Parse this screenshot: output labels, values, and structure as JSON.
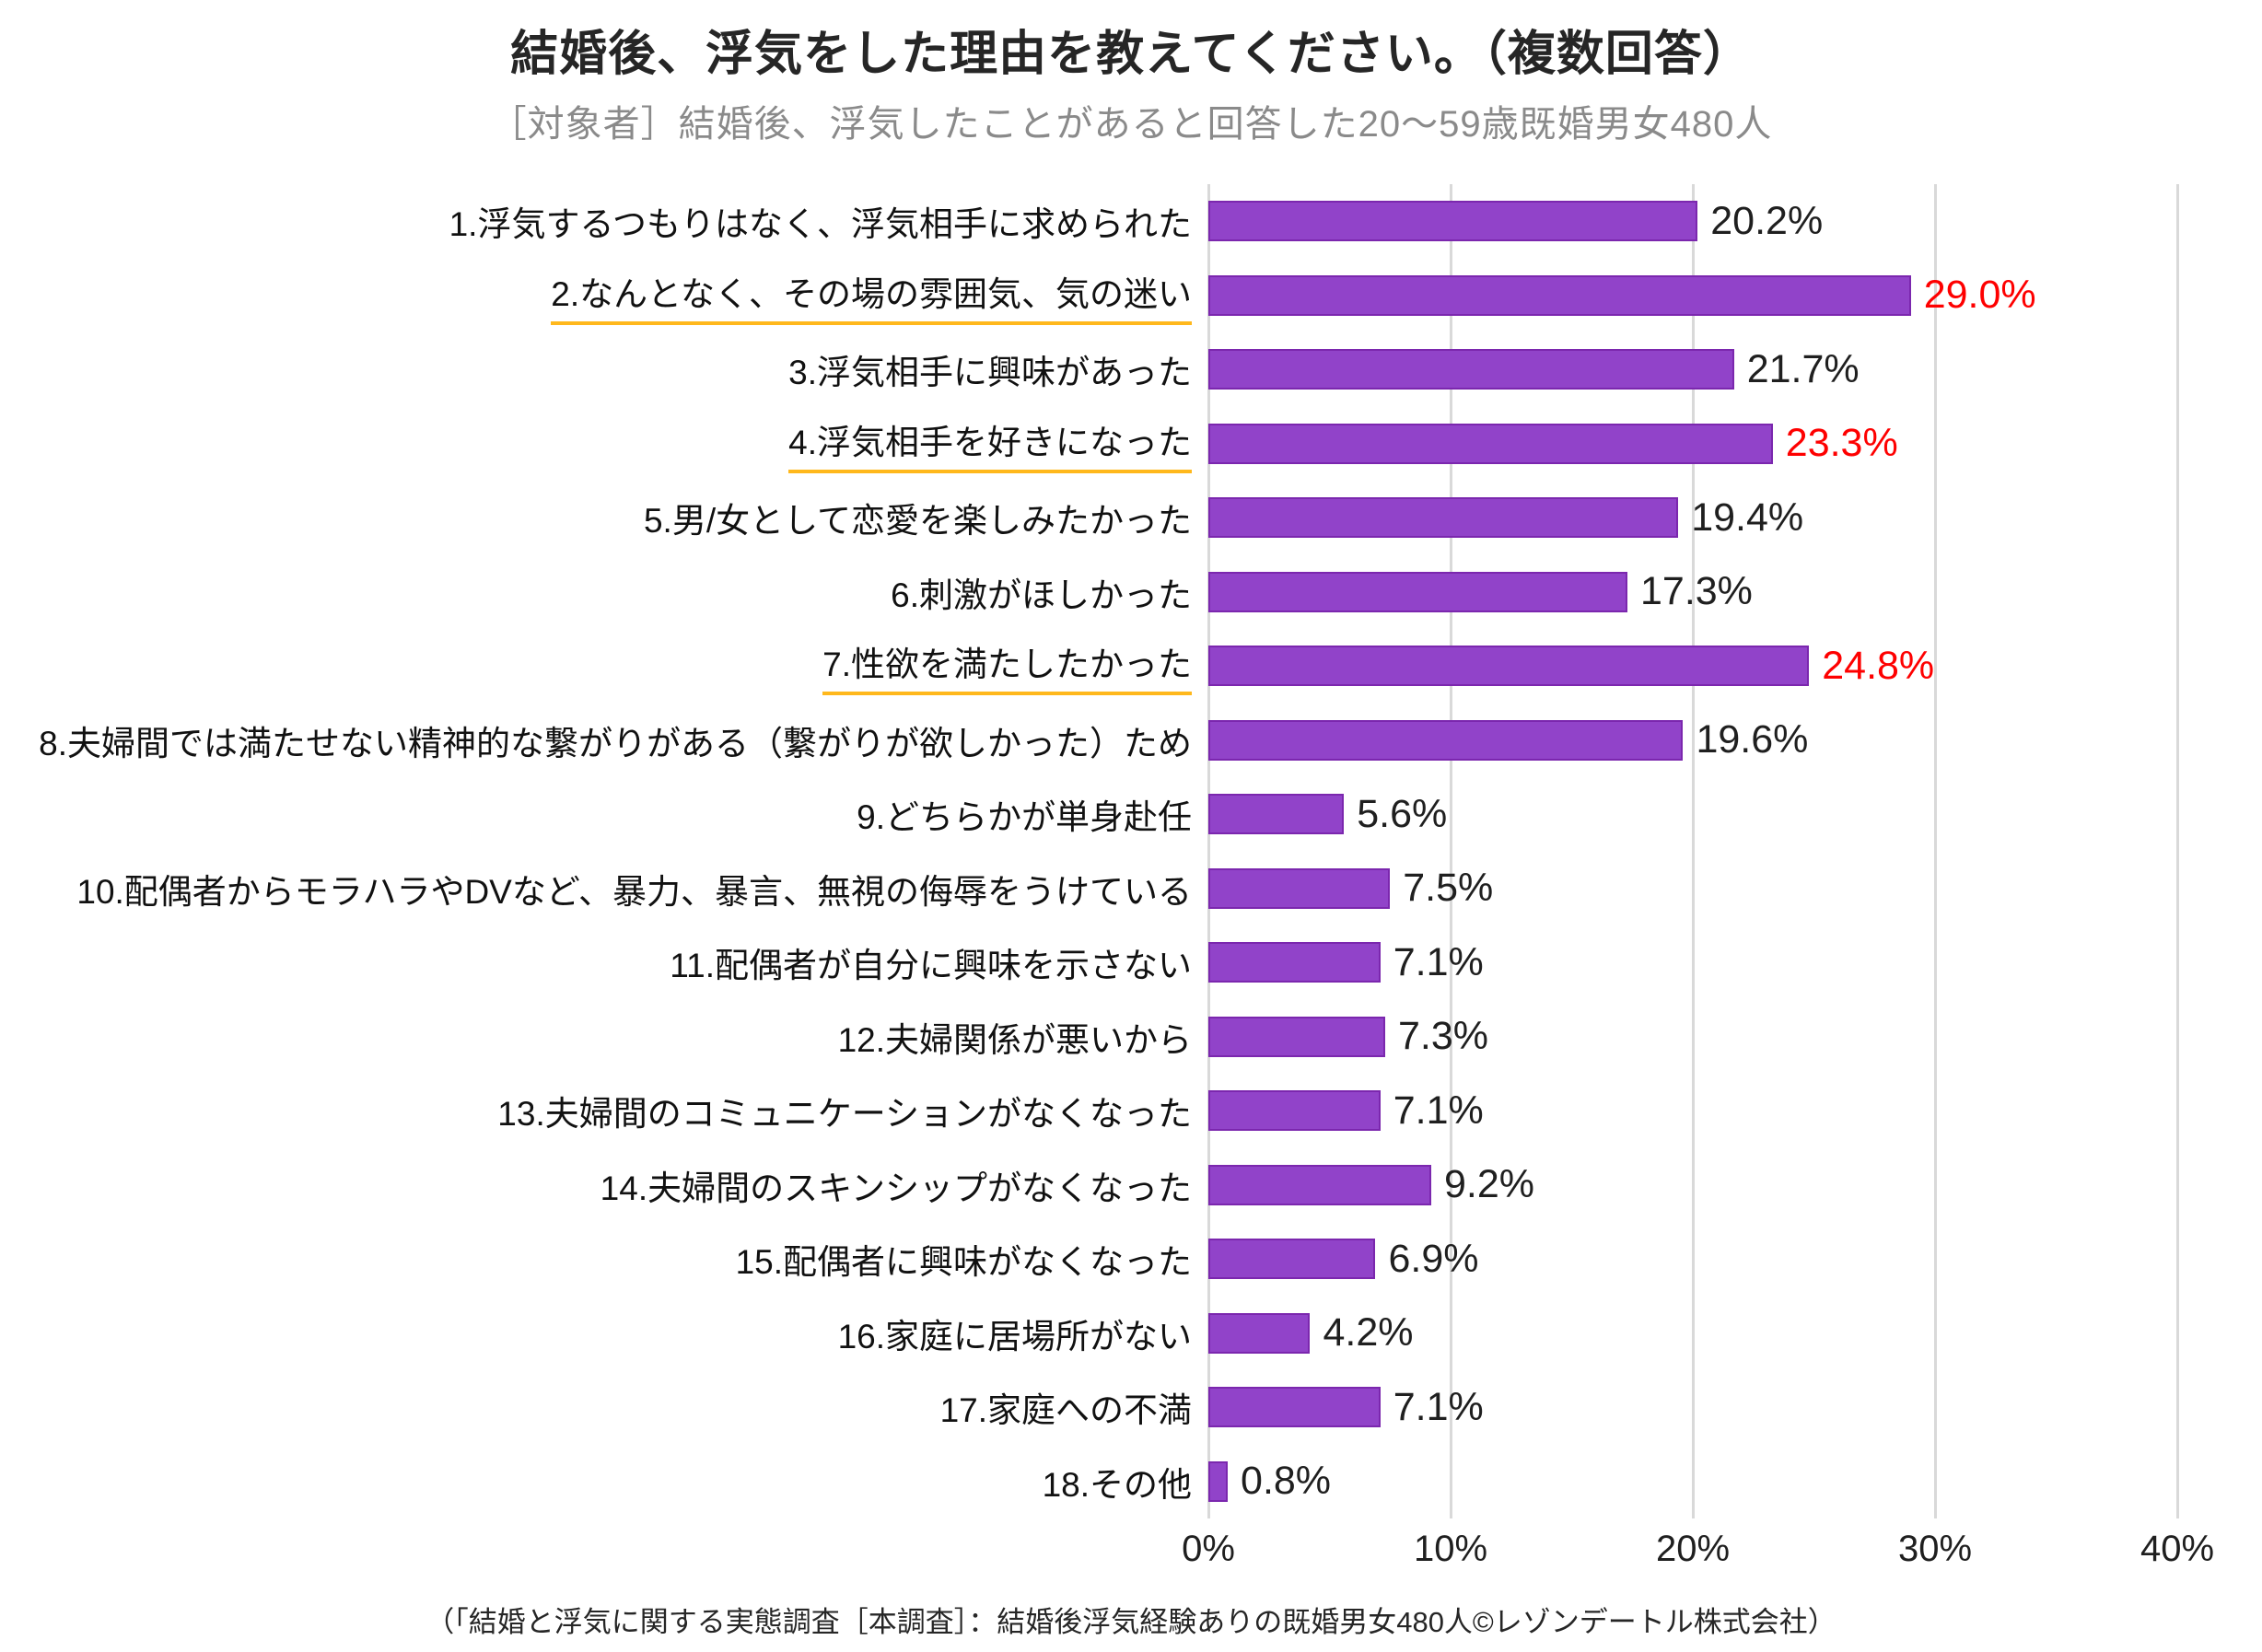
{
  "header": {
    "title": "結婚後、浮気をした理由を教えてください。（複数回答）",
    "subtitle": "［対象者］結婚後、浮気したことがあると回答した20〜59歳既婚男女480人"
  },
  "footer": {
    "source": "（「結婚と浮気に関する実態調査［本調査］：結婚後浮気経験ありの既婚男女480人©レゾンデートル株式会社）"
  },
  "colors": {
    "bar_fill": "#9143c9",
    "bar_border": "#7b27ae",
    "gridline": "#d9d9d9",
    "value_text": "#1f1f1f",
    "value_highlight": "#fe0000",
    "label_underline": "#ffb81c",
    "subtitle_gray": "#8a8a8a"
  },
  "chart_data": {
    "type": "bar",
    "orientation": "horizontal",
    "title": "結婚後、浮気をした理由を教えてください。（複数回答）",
    "subtitle": "［対象者］結婚後、浮気したことがあると回答した20〜59歳既婚男女480人",
    "unit": "%",
    "xlim": [
      0,
      40
    ],
    "grid": "vertical-only",
    "x_ticks": [
      {
        "label": "0%",
        "value": 0
      },
      {
        "label": "10%",
        "value": 10
      },
      {
        "label": "20%",
        "value": 20
      },
      {
        "label": "30%",
        "value": 30
      },
      {
        "label": "40%",
        "value": 40
      }
    ],
    "items": [
      {
        "label": "1.浮気するつもりはなく、浮気相手に求められた",
        "value": 20.2,
        "value_label": "20.2%",
        "highlight": false,
        "underline": false
      },
      {
        "label": "2.なんとなく、その場の雰囲気、気の迷い",
        "value": 29.0,
        "value_label": "29.0%",
        "highlight": true,
        "underline": true
      },
      {
        "label": "3.浮気相手に興味があった",
        "value": 21.7,
        "value_label": "21.7%",
        "highlight": false,
        "underline": false
      },
      {
        "label": "4.浮気相手を好きになった",
        "value": 23.3,
        "value_label": "23.3%",
        "highlight": true,
        "underline": true
      },
      {
        "label": "5.男/女として恋愛を楽しみたかった",
        "value": 19.4,
        "value_label": "19.4%",
        "highlight": false,
        "underline": false
      },
      {
        "label": "6.刺激がほしかった",
        "value": 17.3,
        "value_label": "17.3%",
        "highlight": false,
        "underline": false
      },
      {
        "label": "7.性欲を満たしたかった",
        "value": 24.8,
        "value_label": "24.8%",
        "highlight": true,
        "underline": true
      },
      {
        "label": "8.夫婦間では満たせない精神的な繋がりがある（繋がりが欲しかった）ため",
        "value": 19.6,
        "value_label": "19.6%",
        "highlight": false,
        "underline": false
      },
      {
        "label": "9.どちらかが単身赴任",
        "value": 5.6,
        "value_label": "5.6%",
        "highlight": false,
        "underline": false
      },
      {
        "label": "10.配偶者からモラハラやDVなど、暴力、暴言、無視の侮辱をうけている",
        "value": 7.5,
        "value_label": "7.5%",
        "highlight": false,
        "underline": false
      },
      {
        "label": "11.配偶者が自分に興味を示さない",
        "value": 7.1,
        "value_label": "7.1%",
        "highlight": false,
        "underline": false
      },
      {
        "label": "12.夫婦関係が悪いから",
        "value": 7.3,
        "value_label": "7.3%",
        "highlight": false,
        "underline": false
      },
      {
        "label": "13.夫婦間のコミュニケーションがなくなった",
        "value": 7.1,
        "value_label": "7.1%",
        "highlight": false,
        "underline": false
      },
      {
        "label": "14.夫婦間のスキンシップがなくなった",
        "value": 9.2,
        "value_label": "9.2%",
        "highlight": false,
        "underline": false
      },
      {
        "label": "15.配偶者に興味がなくなった",
        "value": 6.9,
        "value_label": "6.9%",
        "highlight": false,
        "underline": false
      },
      {
        "label": "16.家庭に居場所がない",
        "value": 4.2,
        "value_label": "4.2%",
        "highlight": false,
        "underline": false
      },
      {
        "label": "17.家庭への不満",
        "value": 7.1,
        "value_label": "7.1%",
        "highlight": false,
        "underline": false
      },
      {
        "label": "18.その他",
        "value": 0.8,
        "value_label": "0.8%",
        "highlight": false,
        "underline": false
      }
    ]
  }
}
